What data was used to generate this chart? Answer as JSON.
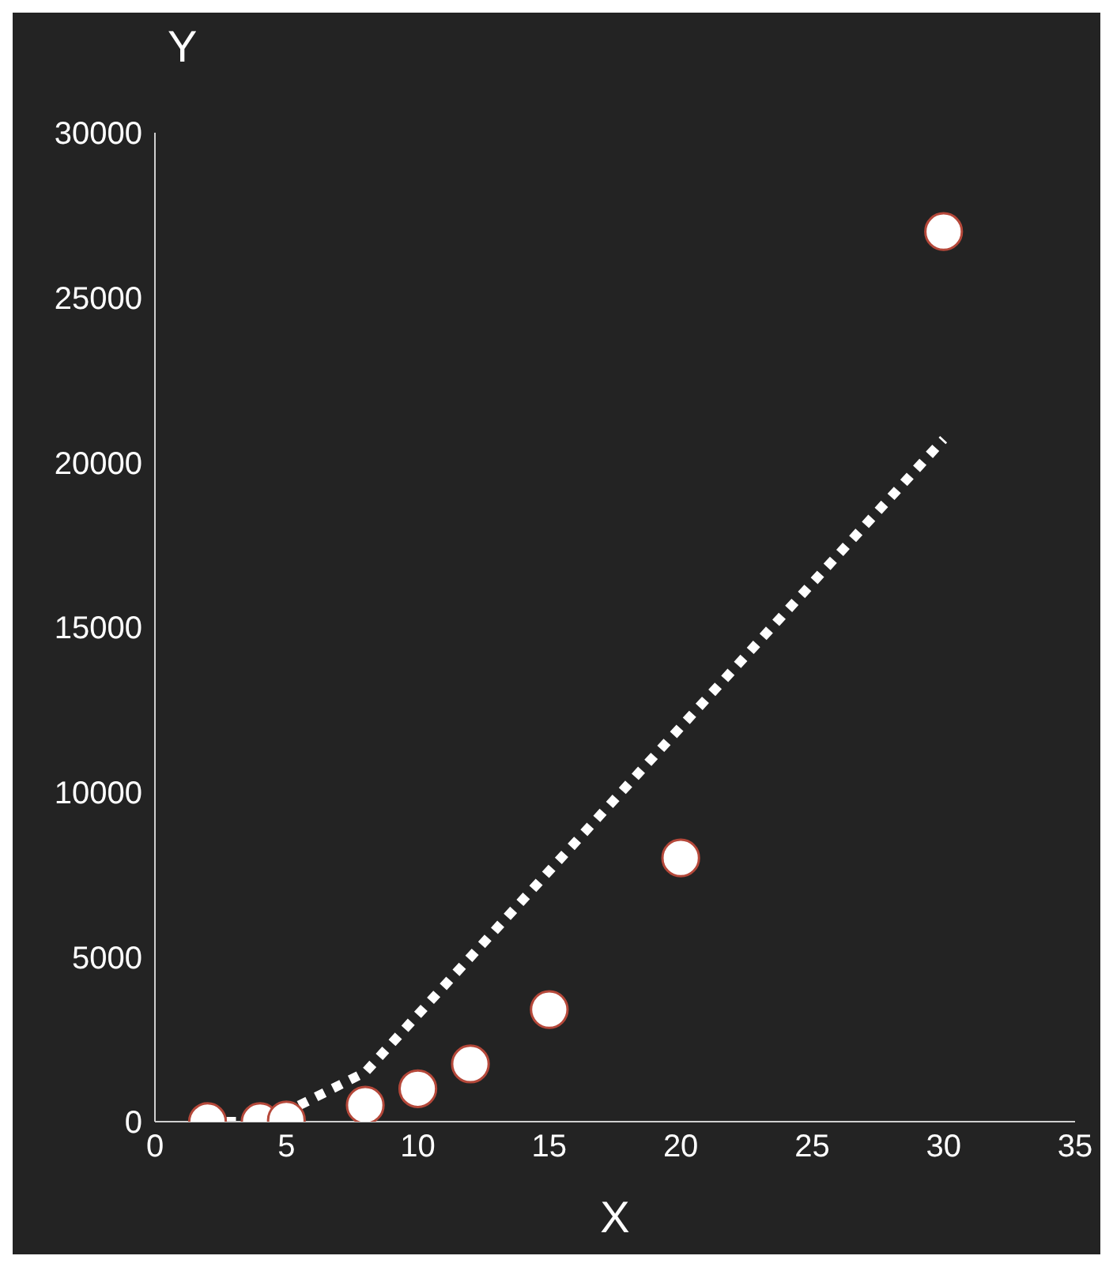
{
  "chart_data": {
    "type": "scatter",
    "xlabel": "X",
    "ylabel": "Y",
    "xlim": [
      0,
      35
    ],
    "xticks": [
      0,
      5,
      10,
      15,
      20,
      25,
      30,
      35
    ],
    "ylim": [
      0,
      30000
    ],
    "yticks": [
      0,
      5000,
      10000,
      15000,
      20000,
      25000,
      30000
    ],
    "grid": false,
    "series": [
      {
        "type": "line",
        "color": "#ffffff",
        "line_style": "dotted",
        "marker": "none",
        "x": [
          2,
          4,
          5,
          8,
          30
        ],
        "values": [
          0,
          0,
          300,
          1500,
          20700
        ]
      },
      {
        "color": "#ffffff",
        "marker": "circle",
        "x": [
          2,
          4,
          5,
          8,
          10,
          12,
          15,
          20,
          30
        ],
        "values": [
          0,
          0,
          50,
          500,
          1000,
          1750,
          3400,
          8000,
          27000
        ]
      }
    ]
  }
}
